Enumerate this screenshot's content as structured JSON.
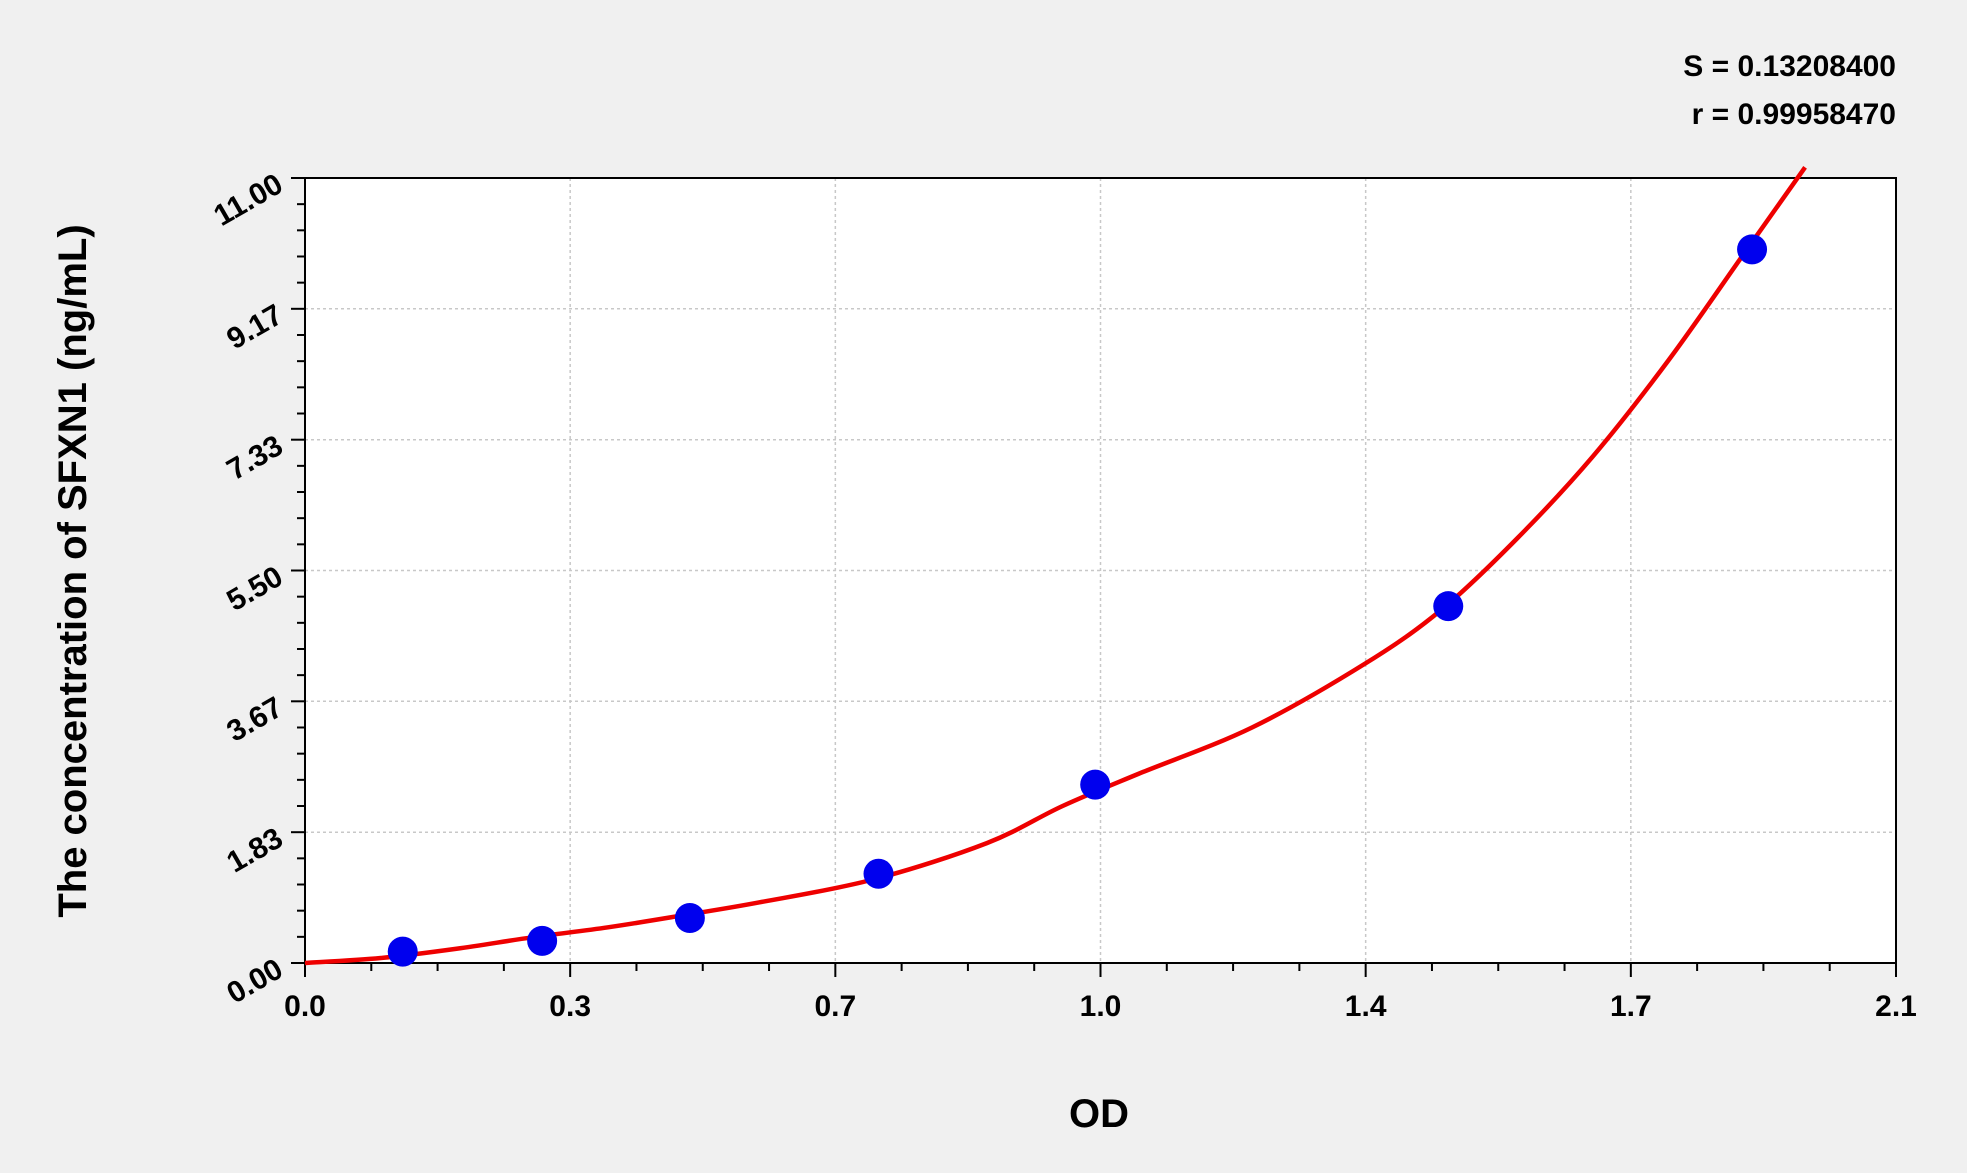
{
  "chart_data": {
    "type": "scatter",
    "xlabel": "OD",
    "ylabel": "The concentration of SFXN1 (ng/mL)",
    "xlim": [
      0,
      2.1
    ],
    "ylim": [
      0,
      11
    ],
    "x_ticks": [
      {
        "value": 0,
        "label": "0.0"
      },
      {
        "value": 0.35,
        "label": "0.3"
      },
      {
        "value": 0.7,
        "label": "0.7"
      },
      {
        "value": 1.05,
        "label": "1.0"
      },
      {
        "value": 1.4,
        "label": "1.4"
      },
      {
        "value": 1.75,
        "label": "1.7"
      },
      {
        "value": 2.1,
        "label": "2.1"
      }
    ],
    "y_ticks": [
      {
        "value": 0,
        "label": "0.00"
      },
      {
        "value": 1.833,
        "label": "1.83"
      },
      {
        "value": 3.667,
        "label": "3.67"
      },
      {
        "value": 5.5,
        "label": "5.50"
      },
      {
        "value": 7.333,
        "label": "7.33"
      },
      {
        "value": 9.167,
        "label": "9.17"
      },
      {
        "value": 11,
        "label": "11.00"
      }
    ],
    "grid": true,
    "points": [
      {
        "x": 0.129,
        "y": 0.16
      },
      {
        "x": 0.313,
        "y": 0.31
      },
      {
        "x": 0.508,
        "y": 0.63
      },
      {
        "x": 0.757,
        "y": 1.25
      },
      {
        "x": 1.043,
        "y": 2.5
      },
      {
        "x": 1.509,
        "y": 5.0
      },
      {
        "x": 1.91,
        "y": 10.0
      }
    ],
    "fit_curve": [
      [
        0,
        0
      ],
      [
        0.1,
        0.07
      ],
      [
        0.2,
        0.2
      ],
      [
        0.3,
        0.36
      ],
      [
        0.4,
        0.5
      ],
      [
        0.5,
        0.67
      ],
      [
        0.6,
        0.85
      ],
      [
        0.75,
        1.17
      ],
      [
        0.9,
        1.68
      ],
      [
        1.0,
        2.2
      ],
      [
        1.1,
        2.65
      ],
      [
        1.25,
        3.3
      ],
      [
        1.4,
        4.2
      ],
      [
        1.5,
        4.95
      ],
      [
        1.6,
        5.95
      ],
      [
        1.7,
        7.1
      ],
      [
        1.8,
        8.45
      ],
      [
        1.9,
        9.95
      ],
      [
        1.98,
        11.15
      ]
    ],
    "annotations": [
      "S = 0.13208400",
      "r = 0.99958470"
    ],
    "colors": {
      "points": "#0000ee",
      "curve": "#ee0000",
      "grid": "#c8c8c8"
    }
  }
}
